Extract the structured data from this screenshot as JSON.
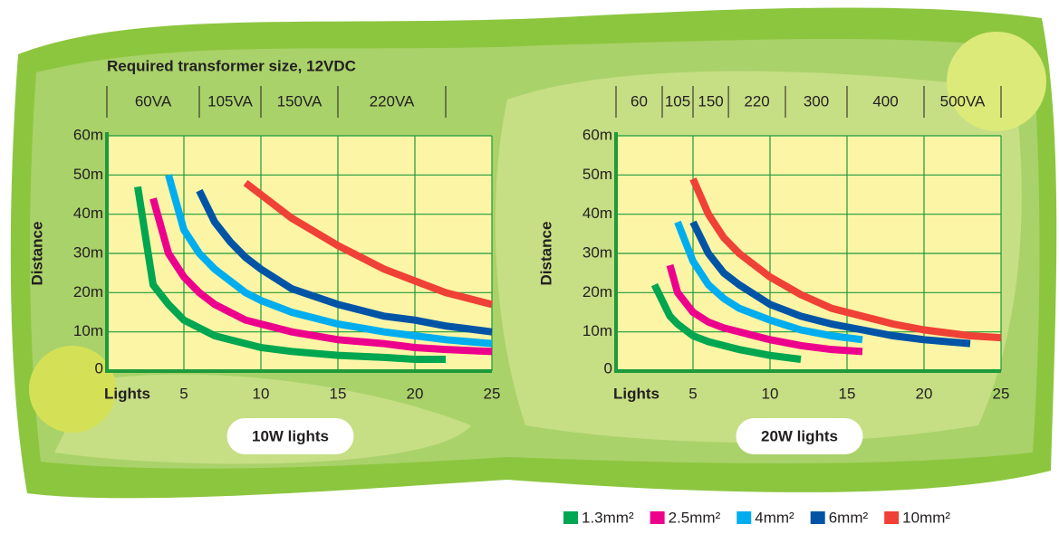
{
  "chart_data": [
    {
      "type": "line",
      "title": "10W lights",
      "header": "Required transformer size, 12VDC",
      "transformer_sizes": [
        "60VA",
        "105VA",
        "150VA",
        "220VA"
      ],
      "transformer_bounds": [
        0,
        6,
        10,
        15,
        22
      ],
      "x_label": "Lights",
      "y_label": "Distance",
      "grid": true,
      "xlim": [
        0,
        25
      ],
      "xticks": [
        5,
        10,
        15,
        20,
        25
      ],
      "ylim": [
        0,
        60
      ],
      "yticks": [
        0,
        {
          "value": 10,
          "label": "10m"
        },
        {
          "value": 20,
          "label": "20m"
        },
        {
          "value": 30,
          "label": "30m"
        },
        {
          "value": 40,
          "label": "40m"
        },
        {
          "value": 50,
          "label": "50m"
        },
        {
          "value": 60,
          "label": "60m"
        }
      ],
      "x": [
        2,
        3,
        4,
        5,
        6,
        7,
        8,
        9,
        10,
        12,
        15,
        18,
        20,
        22,
        25
      ],
      "series": [
        {
          "name": "1.3mm²",
          "color": "#00a650",
          "values": [
            47,
            22,
            17,
            13,
            11,
            9,
            8,
            7,
            6,
            5,
            4,
            3.5,
            3,
            3,
            null
          ]
        },
        {
          "name": "2.5mm²",
          "color": "#ec008c",
          "values": [
            null,
            44,
            30,
            24,
            20,
            17,
            15,
            13,
            12,
            10,
            8,
            7,
            6,
            5.5,
            5
          ]
        },
        {
          "name": "4mm²",
          "color": "#00aeef",
          "values": [
            null,
            null,
            50,
            36,
            30,
            26,
            23,
            20,
            18,
            15,
            12,
            10,
            9,
            8,
            7
          ]
        },
        {
          "name": "6mm²",
          "color": "#0054a6",
          "values": [
            null,
            null,
            null,
            null,
            46,
            38,
            33,
            29,
            26,
            21,
            17,
            14,
            13,
            11.5,
            10
          ]
        },
        {
          "name": "10mm²",
          "color": "#ef4136",
          "values": [
            null,
            null,
            null,
            null,
            null,
            null,
            null,
            48,
            45,
            39,
            32,
            26,
            23,
            20,
            17
          ]
        }
      ]
    },
    {
      "type": "line",
      "title": "20W lights",
      "transformer_sizes": [
        "60",
        "105",
        "150",
        "220",
        "300",
        "400",
        "500VA"
      ],
      "transformer_bounds": [
        0,
        3,
        5,
        7.3,
        11,
        15,
        20,
        25
      ],
      "x_label": "Lights",
      "y_label": "Distance",
      "grid": true,
      "xlim": [
        0,
        25
      ],
      "xticks": [
        5,
        10,
        15,
        20,
        25
      ],
      "ylim": [
        0,
        60
      ],
      "yticks": [
        0,
        {
          "value": 10,
          "label": "10m"
        },
        {
          "value": 20,
          "label": "20m"
        },
        {
          "value": 30,
          "label": "30m"
        },
        {
          "value": 40,
          "label": "40m"
        },
        {
          "value": 50,
          "label": "50m"
        },
        {
          "value": 60,
          "label": "60m"
        }
      ],
      "x": [
        2.5,
        3.5,
        4,
        5,
        6,
        7,
        8,
        10,
        12,
        14,
        16,
        18,
        20,
        23,
        25
      ],
      "series": [
        {
          "color": "#00a650",
          "values": [
            22,
            14,
            12,
            9,
            7.5,
            6.5,
            5.5,
            4,
            3,
            null,
            null,
            null,
            null,
            null,
            null
          ]
        },
        {
          "color": "#ec008c",
          "values": [
            null,
            27,
            20,
            15,
            12.5,
            11,
            10,
            8,
            6.5,
            5.5,
            5,
            null,
            null,
            null,
            null
          ]
        },
        {
          "color": "#00aeef",
          "values": [
            null,
            null,
            38,
            28,
            22,
            18.5,
            16,
            13,
            10.5,
            9,
            8,
            null,
            null,
            null,
            null
          ]
        },
        {
          "color": "#0054a6",
          "values": [
            null,
            null,
            null,
            38,
            30,
            25,
            22,
            17,
            14,
            12,
            10.5,
            9,
            8,
            7,
            null
          ]
        },
        {
          "color": "#ef4136",
          "values": [
            null,
            null,
            null,
            49,
            40,
            34,
            30,
            24,
            19.5,
            16,
            14,
            12,
            10.5,
            9,
            8.5
          ]
        }
      ]
    }
  ]
}
